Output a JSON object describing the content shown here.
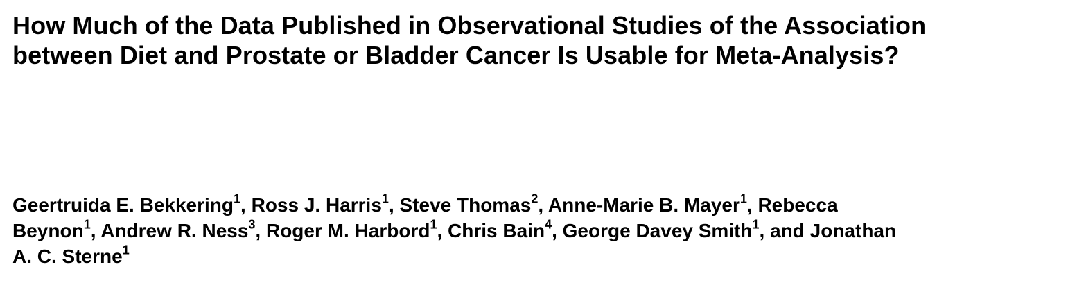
{
  "title": {
    "line1": "How Much of the Data Published in Observational Studies of the Association",
    "line2": "between Diet and Prostate or Bladder Cancer Is Usable for Meta-Analysis?"
  },
  "authors": {
    "line1": [
      {
        "name": "Geertruida E. Bekkering",
        "sup": "1",
        "sep": ", "
      },
      {
        "name": "Ross J. Harris",
        "sup": "1",
        "sep": ", "
      },
      {
        "name": "Steve Thomas",
        "sup": "2",
        "sep": ", "
      },
      {
        "name": "Anne-Marie B. Mayer",
        "sup": "1",
        "sep": ", "
      },
      {
        "name_part1": "Rebecca"
      }
    ],
    "line2": [
      {
        "name_part2": "Beynon",
        "sup": "1",
        "sep": ", "
      },
      {
        "name": "Andrew R. Ness",
        "sup": "3",
        "sep": ", "
      },
      {
        "name": "Roger M. Harbord",
        "sup": "1",
        "sep": ", "
      },
      {
        "name": "Chris Bain",
        "sup": "4",
        "sep": ", "
      },
      {
        "name": "George Davey Smith",
        "sup": "1",
        "sep": ", "
      },
      {
        "and_text": "and ",
        "name_part1": "Jonathan"
      }
    ],
    "line3": [
      {
        "name_part2": "A. C. Sterne",
        "sup": "1"
      }
    ]
  }
}
